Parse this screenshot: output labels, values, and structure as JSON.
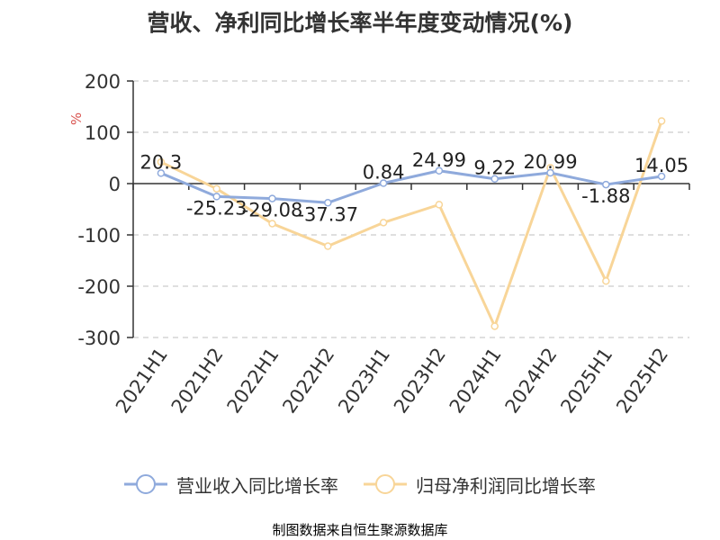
{
  "title": "营收、净利同比增长率半年度变动情况(%)",
  "source_text": "制图数据来自恒生聚源数据库",
  "colors": {
    "revenue": "#8faadc",
    "profit": "#f8d598",
    "source_text": "#b8860b",
    "unit": "#d9534f"
  },
  "chart_data": {
    "type": "line",
    "title": "营收、净利同比增长率半年度变动情况(%)",
    "xlabel": "",
    "ylabel": "%",
    "ylim": [
      -300,
      200
    ],
    "yticks": [
      200,
      100,
      0,
      -100,
      -200,
      -300
    ],
    "grid": true,
    "legend_position": "bottom",
    "categories": [
      "2021H1",
      "2021H2",
      "2022H1",
      "2022H2",
      "2023H1",
      "2023H2",
      "2024H1",
      "2024H2",
      "2025H1",
      "2025H2"
    ],
    "series": [
      {
        "name": "营业收入同比增长率",
        "values": [
          20.3,
          -25.23,
          -29.08,
          -37.37,
          0.84,
          24.99,
          9.22,
          20.99,
          -1.88,
          14.05
        ],
        "labels": [
          "20.3",
          "-25.23",
          "-29.08",
          "-37.37",
          "0.84",
          "24.99",
          "9.22",
          "20.99",
          "-1.88",
          "14.05"
        ]
      },
      {
        "name": "归母净利润同比增长率",
        "values": [
          42,
          -10,
          -78,
          -122,
          -76,
          -41,
          -278,
          31,
          -190,
          122
        ]
      }
    ]
  }
}
